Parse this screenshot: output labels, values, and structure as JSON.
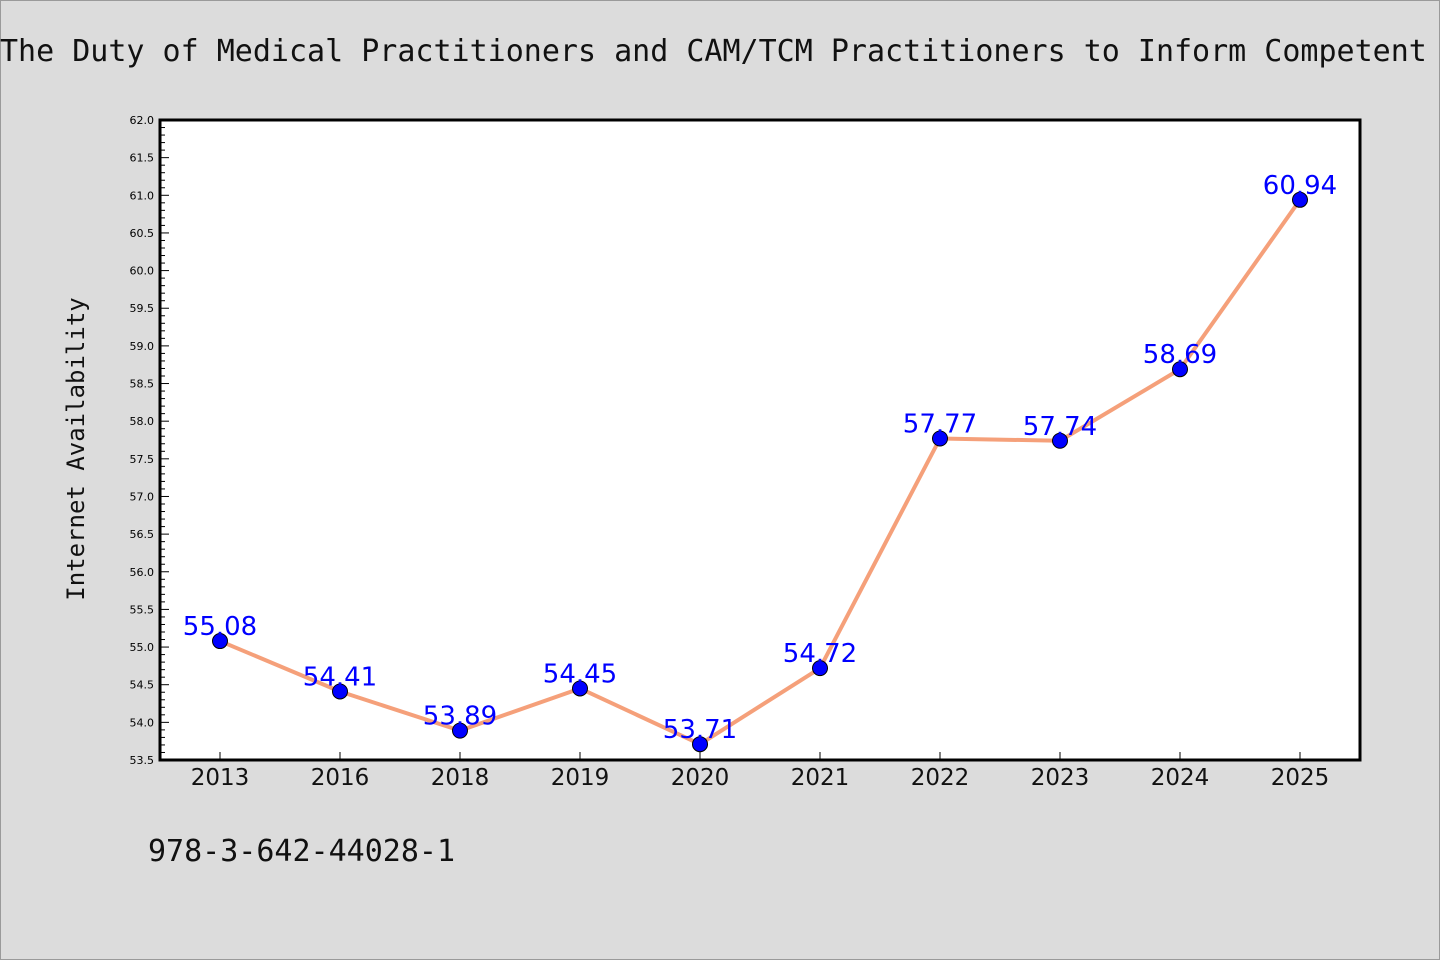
{
  "chart_data": {
    "type": "line",
    "title": "The Duty of Medical Practitioners and CAM/TCM Practitioners to Inform Competent",
    "xlabel": "",
    "ylabel": "Internet Availability",
    "categories": [
      "2013",
      "2016",
      "2018",
      "2019",
      "2020",
      "2021",
      "2022",
      "2023",
      "2024",
      "2025"
    ],
    "series": [
      {
        "values": [
          55.08,
          54.41,
          53.89,
          54.45,
          53.71,
          54.72,
          57.77,
          57.74,
          58.69,
          60.94
        ],
        "labels": [
          "55.08",
          "54.41",
          "53.89",
          "54.45",
          "53.71",
          "54.72",
          "57.77",
          "57.74",
          "58.69",
          "60.94"
        ],
        "line_color": "#f5a07a",
        "marker_color": "#0000ff"
      }
    ],
    "ylim": [
      53.5,
      62.0
    ],
    "yticks": [
      "53.5",
      "54.0",
      "54.5",
      "55.0",
      "55.5",
      "56.0",
      "56.5",
      "57.0",
      "57.5",
      "58.0",
      "58.5",
      "59.0",
      "59.5",
      "60.0",
      "60.5",
      "61.0",
      "61.5",
      "62.0"
    ],
    "grid": false,
    "legend": "none"
  },
  "footer": {
    "code": "978-3-642-44028-1"
  },
  "colors": {
    "background": "#dcdcdc",
    "plot_bg": "#ffffff",
    "line": "#f5a07a",
    "marker": "#0000ff",
    "label": "#0000ff"
  }
}
